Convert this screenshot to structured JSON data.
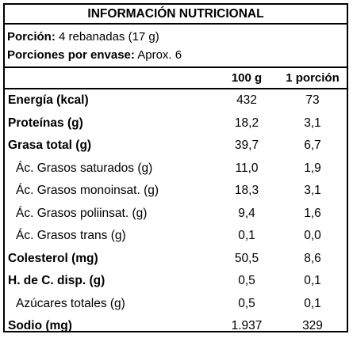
{
  "title": "INFORMACIÓN NUTRICIONAL",
  "serving": {
    "portion_label": "Porción:",
    "portion_value": "4 rebanadas (17 g)",
    "per_container_label": "Porciones por envase:",
    "per_container_value": "Aprox. 6"
  },
  "columns": {
    "per100": "100 g",
    "perPortion": "1 porción"
  },
  "rows": [
    {
      "name": "Energía (kcal)",
      "per100": "432",
      "perPortion": "73"
    },
    {
      "name": "Proteínas (g)",
      "per100": "18,2",
      "perPortion": "3,1"
    },
    {
      "name": "Grasa total (g)",
      "per100": "39,7",
      "perPortion": "6,7"
    },
    {
      "name": "Ác. Grasos saturados (g)",
      "per100": "11,0",
      "perPortion": "1,9"
    },
    {
      "name": "Ác. Grasos monoinsat. (g)",
      "per100": "18,3",
      "perPortion": "3,1"
    },
    {
      "name": "Ác. Grasos poliinsat. (g)",
      "per100": "9,4",
      "perPortion": "1,6"
    },
    {
      "name": "Ác. Grasos trans (g)",
      "per100": "0,1",
      "perPortion": "0,0"
    },
    {
      "name": "Colesterol (mg)",
      "per100": "50,5",
      "perPortion": "8,6"
    },
    {
      "name": "H. de C. disp. (g)",
      "per100": "0,5",
      "perPortion": "0,1"
    },
    {
      "name": "Azúcares totales (g)",
      "per100": "0,5",
      "perPortion": "0,1"
    },
    {
      "name": "Sodio (mg)",
      "per100": "1.937",
      "perPortion": "329"
    }
  ]
}
